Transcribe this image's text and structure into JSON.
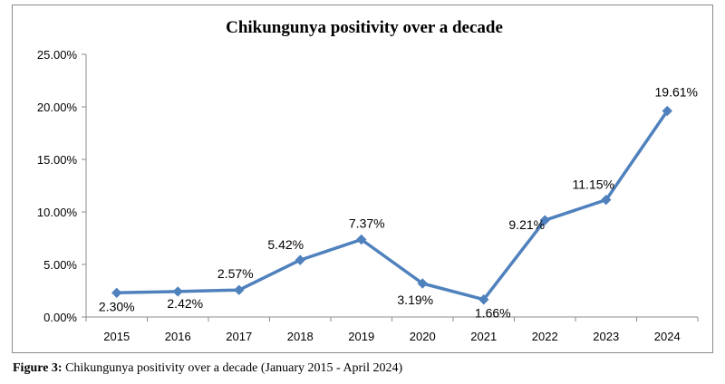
{
  "chart_data": {
    "type": "line",
    "title": "Chikungunya positivity over a decade",
    "xlabel": "",
    "ylabel": "",
    "categories": [
      "2015",
      "2016",
      "2017",
      "2018",
      "2019",
      "2020",
      "2021",
      "2022",
      "2023",
      "2024"
    ],
    "series": [
      {
        "values": [
          2.3,
          2.42,
          2.57,
          5.42,
          7.37,
          3.19,
          1.66,
          9.21,
          11.15,
          19.61
        ],
        "data_labels": [
          "2.30%",
          "2.42%",
          "2.57%",
          "5.42%",
          "7.37%",
          "3.19%",
          "1.66%",
          "9.21%",
          "11.15%",
          "19.61%"
        ]
      }
    ],
    "ylim": [
      0,
      25
    ],
    "yticks": [
      0,
      5,
      10,
      15,
      20,
      25
    ],
    "ytick_labels": [
      "0.00%",
      "5.00%",
      "10.00%",
      "15.00%",
      "20.00%",
      "25.00%"
    ],
    "grid": false,
    "legend": "none",
    "line_color": "#4f81bd",
    "marker": "diamond"
  },
  "caption": {
    "label": "Figure 3:",
    "text": " Chikungunya positivity over a decade (January 2015 - April 2024)"
  }
}
